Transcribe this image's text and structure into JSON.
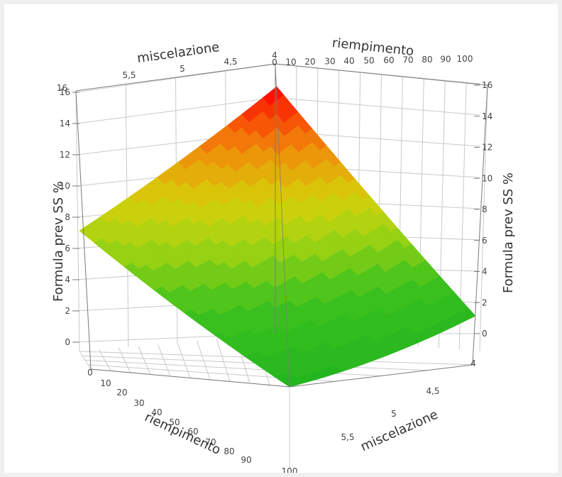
{
  "chart_data": {
    "type": "surface3d",
    "z_label": "Formula prev SS %",
    "x_label": "riempimento",
    "y_label": "miscelazione",
    "x_range": [
      0,
      100
    ],
    "y_range": [
      4,
      6
    ],
    "z_range": [
      0,
      16
    ],
    "x_ticks": [
      "0",
      "10",
      "20",
      "30",
      "40",
      "50",
      "60",
      "70",
      "80",
      "90",
      "100"
    ],
    "y_ticks_front": [
      "4",
      "4,5",
      "5",
      "5,5"
    ],
    "y_ticks_back": [
      "4,5",
      "5",
      "5,5",
      "6"
    ],
    "z_ticks": [
      "0",
      "2",
      "4",
      "6",
      "8",
      "10",
      "12",
      "14",
      "16"
    ],
    "surface_corners": [
      {
        "x": 0,
        "y": 4,
        "z": 16
      },
      {
        "x": 100,
        "y": 4,
        "z": 7.5
      },
      {
        "x": 100,
        "y": 6,
        "z": 0.5
      },
      {
        "x": 0,
        "y": 6,
        "z": 1.8
      }
    ],
    "surface_min": {
      "x": 100,
      "y": 6,
      "z": 0.5
    },
    "color_scale": [
      {
        "z": 0,
        "color": "#1fb41f"
      },
      {
        "z": 4,
        "color": "#3ec21e"
      },
      {
        "z": 7,
        "color": "#a7d412"
      },
      {
        "z": 9,
        "color": "#d6d00a"
      },
      {
        "z": 12,
        "color": "#f08a0a"
      },
      {
        "z": 16,
        "color": "#ff0000"
      }
    ],
    "grid": true
  }
}
